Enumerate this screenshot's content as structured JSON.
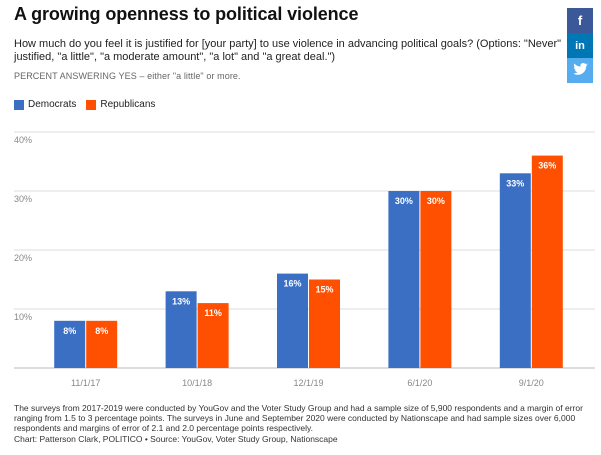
{
  "title": "A growing openness to political violence",
  "subtitle": "How much do you feel it is justified for [your party] to use violence in advancing political goals? (Options: \"Never\" justified, \"a little\", \"a moderate amount\", \"a lot\" and \"a great deal.\")",
  "kicker": "PERCENT ANSWERING YES – either \"a little\" or more.",
  "share": {
    "facebook": "f",
    "linkedin": "in",
    "twitter": "🐦"
  },
  "footnote": "The surveys from 2017-2019 were conducted by YouGov and the Voter Study Group and had a sample size of 5,900 respondents and a margin of error ranging from 1.5 to 3 percentage points. The surveys in June and September 2020 were conducted by Nationscape and had sample sizes over 6,000 respondents and margins of error of 2.1 and 2.0 percentage points respectively.",
  "credit": "Chart: Patterson Clark, POLITICO • Source: YouGov, Voter Study Group, Nationscape",
  "colors": {
    "democrats": "#3a6fc4",
    "republicans": "#ff4f00",
    "grid": "#dddddd",
    "axis_text": "#888888"
  },
  "chart_data": {
    "type": "bar",
    "categories": [
      "11/1/17",
      "10/1/18",
      "12/1/19",
      "6/1/20",
      "9/1/20"
    ],
    "series": [
      {
        "name": "Democrats",
        "values": [
          8,
          13,
          16,
          30,
          33
        ]
      },
      {
        "name": "Republicans",
        "values": [
          8,
          11,
          15,
          30,
          36
        ]
      }
    ],
    "data_labels": [
      [
        "8%",
        "13%",
        "16%",
        "30%",
        "33%"
      ],
      [
        "8%",
        "11%",
        "15%",
        "30%",
        "36%"
      ]
    ],
    "y_ticks": [
      10,
      20,
      30,
      40
    ],
    "y_tick_labels": [
      "10%",
      "20%",
      "30%",
      "40%"
    ],
    "ylim": [
      0,
      40
    ],
    "xlabel": "",
    "ylabel": "",
    "grid": true,
    "legend_position": "top-left"
  }
}
